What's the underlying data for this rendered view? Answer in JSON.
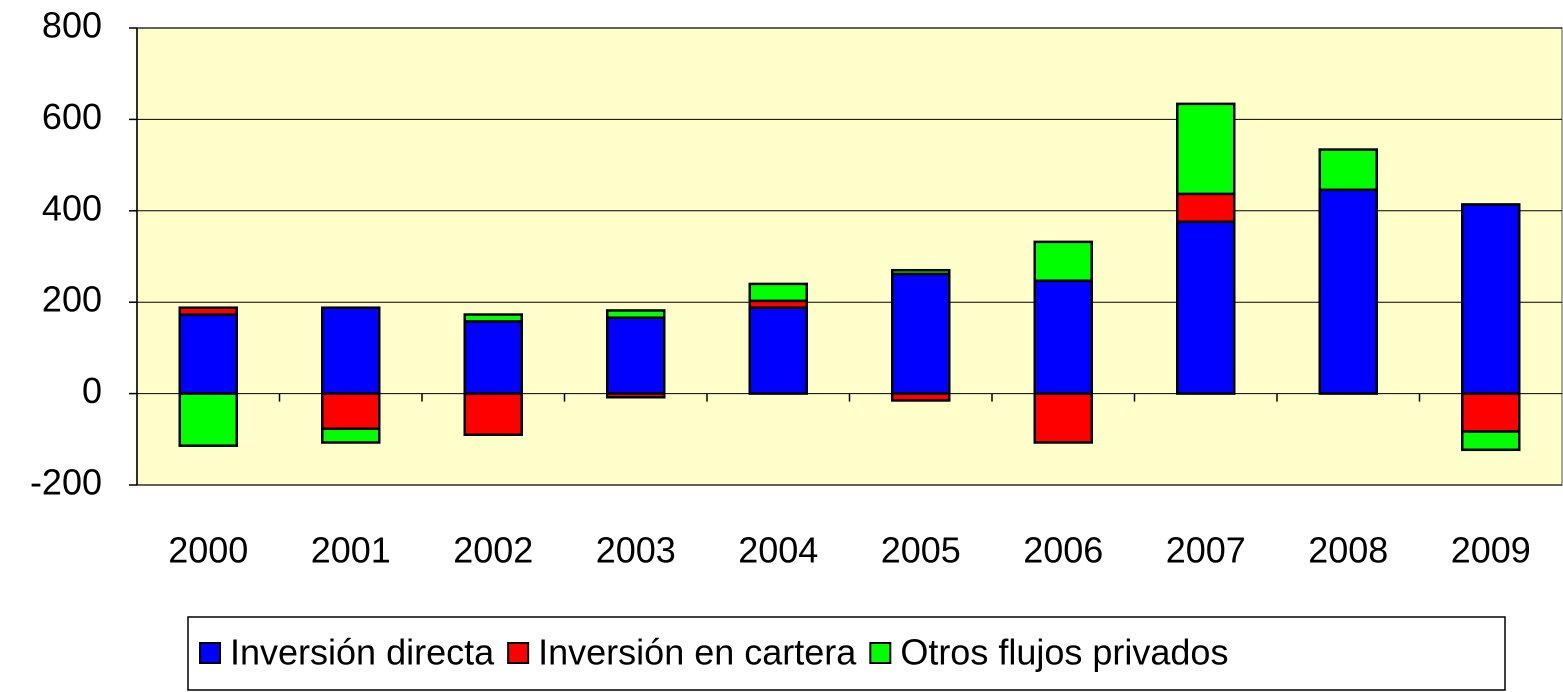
{
  "chart_data": {
    "type": "bar",
    "stacked": true,
    "categories": [
      "2000",
      "2001",
      "2002",
      "2003",
      "2004",
      "2005",
      "2006",
      "2007",
      "2008",
      "2009"
    ],
    "series": [
      {
        "name": "Inversión directa",
        "color": "#0000ff",
        "values": [
          173,
          188,
          158,
          166,
          188,
          262,
          247,
          376,
          446,
          414
        ]
      },
      {
        "name": "Inversión en cartera",
        "color": "#ff0000",
        "values": [
          15,
          -77,
          -90,
          -8,
          15,
          -15,
          -107,
          61,
          0,
          -83
        ]
      },
      {
        "name": "Otros flujos privados",
        "color": "#00ff00",
        "values": [
          -114,
          -30,
          15,
          16,
          37,
          8,
          85,
          197,
          88,
          -40
        ]
      }
    ],
    "ylim": [
      -200,
      800
    ],
    "yticks": [
      -200,
      0,
      200,
      400,
      600,
      800
    ],
    "grid": true,
    "legend": "bottom",
    "background": "#ffffcc"
  }
}
